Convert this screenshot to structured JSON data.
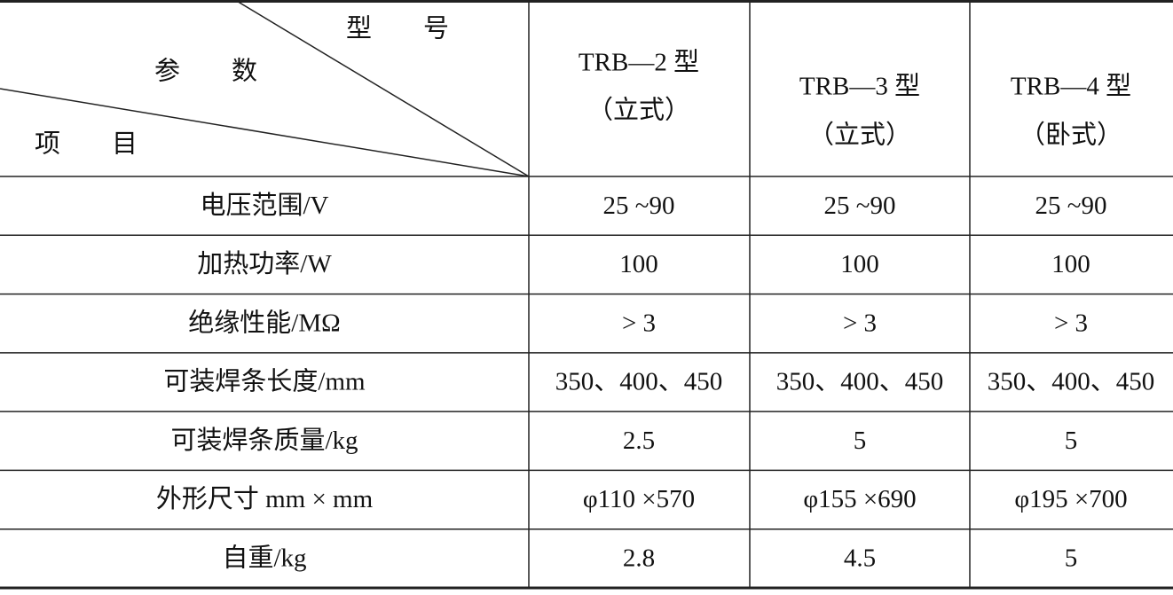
{
  "table": {
    "header": {
      "corner": {
        "top": "型　　号",
        "middle": "参　　数",
        "bottom": "项　　目"
      },
      "columns": [
        [
          "TRB—2 型",
          "（立式）"
        ],
        [
          "TRB—3 型",
          "（立式）"
        ],
        [
          "TRB—4 型",
          "（卧式）"
        ]
      ]
    },
    "rows": [
      [
        "电压范围/V",
        "25 ~90",
        "25 ~90",
        "25 ~90"
      ],
      [
        "加热功率/W",
        "100",
        "100",
        "100"
      ],
      [
        "绝缘性能/MΩ",
        "> 3",
        "> 3",
        "> 3"
      ],
      [
        "可装焊条长度/mm",
        "350、400、450",
        "350、400、450",
        "350、400、450"
      ],
      [
        "可装焊条质量/kg",
        "2.5",
        "5",
        "5"
      ],
      [
        "外形尺寸 mm × mm",
        "φ110 ×570",
        "φ155 ×690",
        "φ195 ×700"
      ],
      [
        "自重/kg",
        "2.8",
        "4.5",
        "5"
      ]
    ]
  }
}
